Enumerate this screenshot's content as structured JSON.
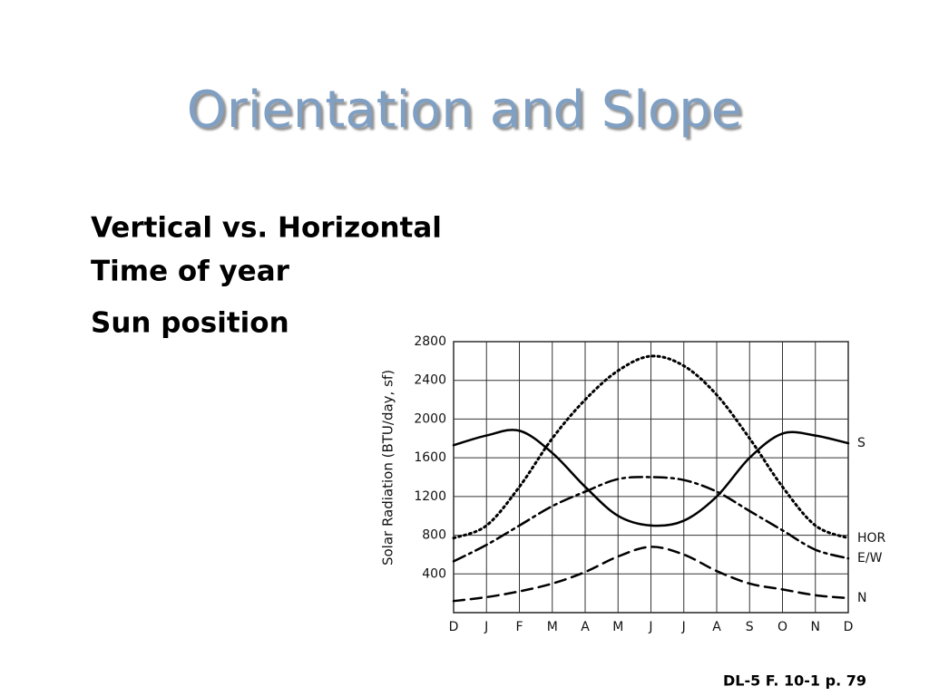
{
  "slide": {
    "title": "Orientation and Slope",
    "bullets": [
      "Vertical vs. Horizontal",
      "Time of year",
      "Sun position"
    ],
    "footer": "DL-5 F. 10-1 p. 79"
  },
  "chart_data": {
    "type": "line",
    "y_label": "Solar Radiation (BTU/day, sf)",
    "categories": [
      "D",
      "J",
      "F",
      "M",
      "A",
      "M",
      "J",
      "J",
      "A",
      "S",
      "O",
      "N",
      "D"
    ],
    "ylim": [
      0,
      2800
    ],
    "yticks": [
      400,
      800,
      1200,
      1600,
      2000,
      2400,
      2800
    ],
    "grid": true,
    "series": [
      {
        "name": "S",
        "color": "#000000",
        "line_style": "solid",
        "values": [
          1730,
          1830,
          1880,
          1650,
          1300,
          1000,
          900,
          950,
          1200,
          1600,
          1850,
          1830,
          1750
        ]
      },
      {
        "name": "HOR",
        "color": "#000000",
        "line_style": "dotted",
        "values": [
          770,
          900,
          1300,
          1800,
          2200,
          2500,
          2650,
          2550,
          2250,
          1800,
          1300,
          900,
          770
        ]
      },
      {
        "name": "E/W",
        "color": "#000000",
        "line_style": "dashdot",
        "values": [
          530,
          700,
          900,
          1100,
          1250,
          1380,
          1400,
          1370,
          1250,
          1050,
          850,
          650,
          560
        ]
      },
      {
        "name": "N",
        "color": "#000000",
        "line_style": "dashed",
        "values": [
          120,
          160,
          220,
          300,
          420,
          580,
          680,
          600,
          430,
          300,
          240,
          180,
          150
        ]
      }
    ]
  }
}
